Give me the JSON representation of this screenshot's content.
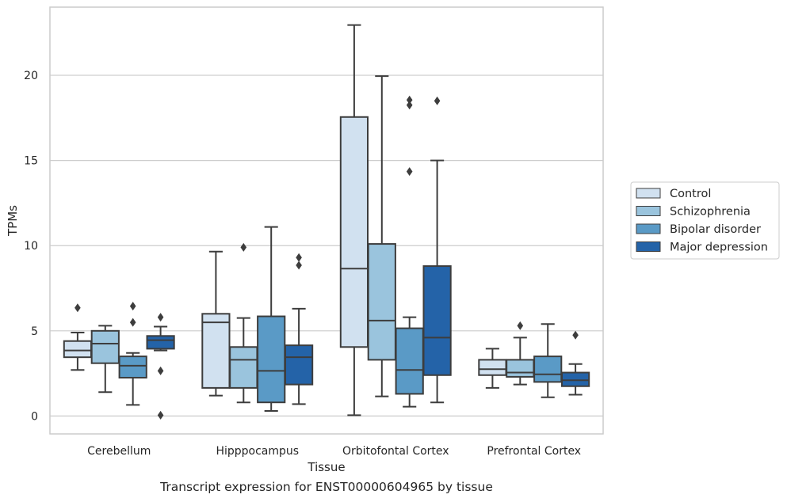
{
  "caption": "Transcript expression for ENST00000604965 by tissue",
  "chart_data": {
    "type": "box",
    "xlabel": "Tissue",
    "ylabel": "TPMs",
    "ylim": [
      -1.05,
      24
    ],
    "yticks": [
      0,
      5,
      10,
      15,
      20
    ],
    "grid": "horizontal",
    "legend_position": "right-outside",
    "categories": [
      "Cerebellum",
      "Hipppocampus",
      "Orbitofontal Cortex",
      "Prefrontal Cortex"
    ],
    "series": [
      {
        "name": "Control",
        "color": "#d1e1f0",
        "boxes": [
          {
            "whisker_low": 2.7,
            "q1": 3.45,
            "median": 3.85,
            "q3": 4.4,
            "whisker_high": 4.9,
            "outliers": [
              6.35
            ]
          },
          {
            "whisker_low": 1.2,
            "q1": 1.65,
            "median": 5.5,
            "q3": 6.0,
            "whisker_high": 9.65,
            "outliers": []
          },
          {
            "whisker_low": 0.05,
            "q1": 4.05,
            "median": 8.65,
            "q3": 17.55,
            "whisker_high": 22.95,
            "outliers": []
          },
          {
            "whisker_low": 1.65,
            "q1": 2.4,
            "median": 2.75,
            "q3": 3.3,
            "whisker_high": 3.95,
            "outliers": []
          }
        ]
      },
      {
        "name": "Schizophrenia",
        "color": "#9ac4dd",
        "boxes": [
          {
            "whisker_low": 1.4,
            "q1": 3.1,
            "median": 4.25,
            "q3": 5.0,
            "whisker_high": 5.3,
            "outliers": []
          },
          {
            "whisker_low": 0.8,
            "q1": 1.65,
            "median": 3.3,
            "q3": 4.05,
            "whisker_high": 5.75,
            "outliers": [
              9.9
            ]
          },
          {
            "whisker_low": 1.15,
            "q1": 3.3,
            "median": 5.6,
            "q3": 10.1,
            "whisker_high": 19.95,
            "outliers": []
          },
          {
            "whisker_low": 1.85,
            "q1": 2.3,
            "median": 2.55,
            "q3": 3.3,
            "whisker_high": 4.6,
            "outliers": [
              5.3
            ]
          }
        ]
      },
      {
        "name": "Bipolar disorder",
        "color": "#5a9ac6",
        "boxes": [
          {
            "whisker_low": 0.65,
            "q1": 2.25,
            "median": 2.95,
            "q3": 3.5,
            "whisker_high": 3.7,
            "outliers": [
              5.5,
              6.45
            ]
          },
          {
            "whisker_low": 0.3,
            "q1": 0.8,
            "median": 2.65,
            "q3": 5.85,
            "whisker_high": 11.1,
            "outliers": []
          },
          {
            "whisker_low": 0.55,
            "q1": 1.3,
            "median": 2.7,
            "q3": 5.15,
            "whisker_high": 5.8,
            "outliers": [
              14.35,
              18.25,
              18.55
            ]
          },
          {
            "whisker_low": 1.1,
            "q1": 2.0,
            "median": 2.45,
            "q3": 3.5,
            "whisker_high": 5.4,
            "outliers": []
          }
        ]
      },
      {
        "name": "Major depression",
        "color": "#2463a8",
        "boxes": [
          {
            "whisker_low": 3.85,
            "q1": 3.95,
            "median": 4.45,
            "q3": 4.7,
            "whisker_high": 5.25,
            "outliers": [
              0.05,
              2.65,
              5.8
            ]
          },
          {
            "whisker_low": 0.7,
            "q1": 1.85,
            "median": 3.45,
            "q3": 4.15,
            "whisker_high": 6.3,
            "outliers": [
              8.85,
              9.3
            ]
          },
          {
            "whisker_low": 0.8,
            "q1": 2.4,
            "median": 4.6,
            "q3": 8.8,
            "whisker_high": 15.0,
            "outliers": [
              18.5
            ]
          },
          {
            "whisker_low": 1.25,
            "q1": 1.75,
            "median": 2.1,
            "q3": 2.55,
            "whisker_high": 3.05,
            "outliers": [
              4.75
            ]
          }
        ]
      }
    ]
  }
}
